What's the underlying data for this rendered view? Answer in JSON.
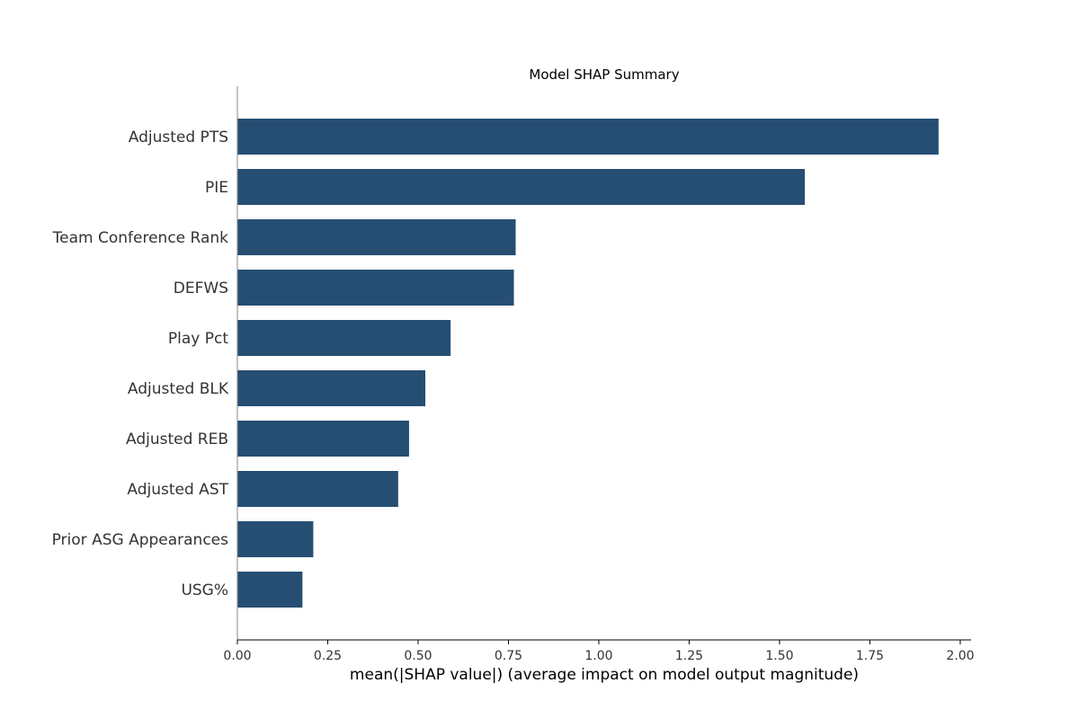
{
  "chart_data": {
    "type": "bar",
    "orientation": "horizontal",
    "title": "Model SHAP Summary",
    "xlabel": "mean(|SHAP value|) (average impact on model output magnitude)",
    "ylabel": "",
    "categories": [
      "Adjusted PTS",
      "PIE",
      "Team Conference Rank",
      "DEFWS",
      "Play Pct",
      "Adjusted BLK",
      "Adjusted REB",
      "Adjusted AST",
      "Prior ASG Appearances",
      "USG%"
    ],
    "values": [
      1.94,
      1.57,
      0.77,
      0.765,
      0.59,
      0.52,
      0.475,
      0.445,
      0.21,
      0.18
    ],
    "xlim": [
      0,
      2.03
    ],
    "xticks": [
      "0.00",
      "0.25",
      "0.50",
      "0.75",
      "1.00",
      "1.25",
      "1.50",
      "1.75",
      "2.00"
    ],
    "grid": false,
    "bar_color": "#264e73",
    "axis_color": "#888888"
  }
}
